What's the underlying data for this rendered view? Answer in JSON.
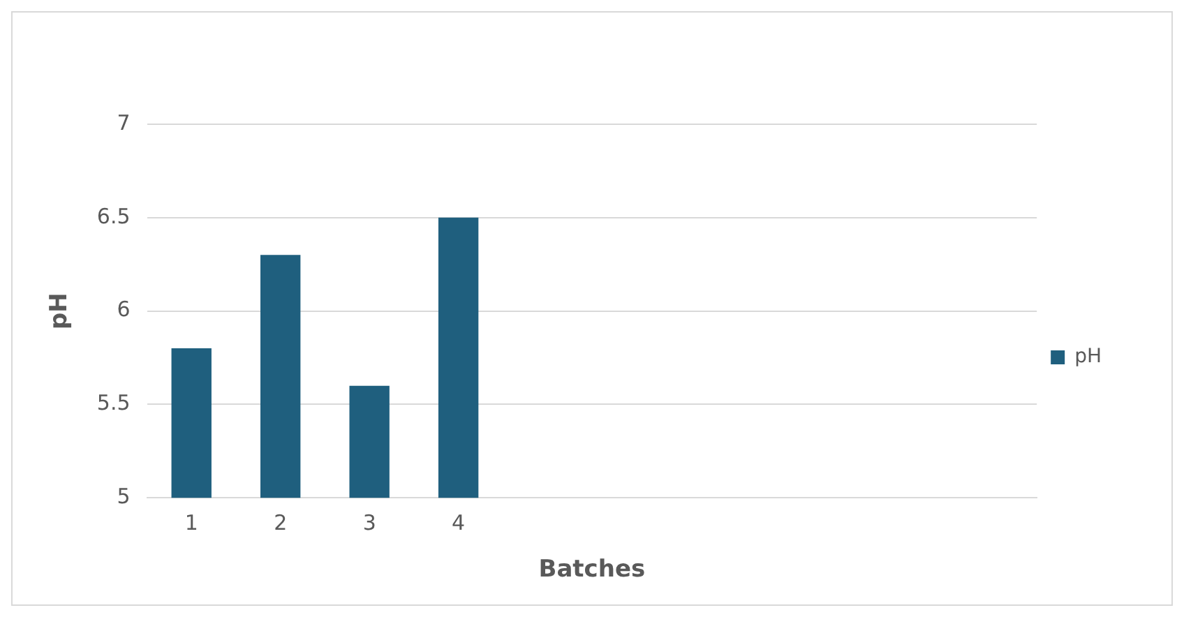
{
  "chart_data": {
    "type": "bar",
    "xlabel": "Batches",
    "ylabel": "pH",
    "categories": [
      "1",
      "2",
      "3",
      "4",
      null,
      null,
      null,
      null,
      null,
      null
    ],
    "series": [
      {
        "name": "pH",
        "color": "#1f5f7e",
        "values": [
          5.8,
          6.3,
          5.6,
          6.5,
          null,
          null,
          null,
          null,
          null,
          null
        ]
      }
    ],
    "ylim": [
      5,
      7
    ],
    "yticks": [
      5,
      5.5,
      6,
      6.5,
      7
    ],
    "grid": "y",
    "legend": "right"
  }
}
